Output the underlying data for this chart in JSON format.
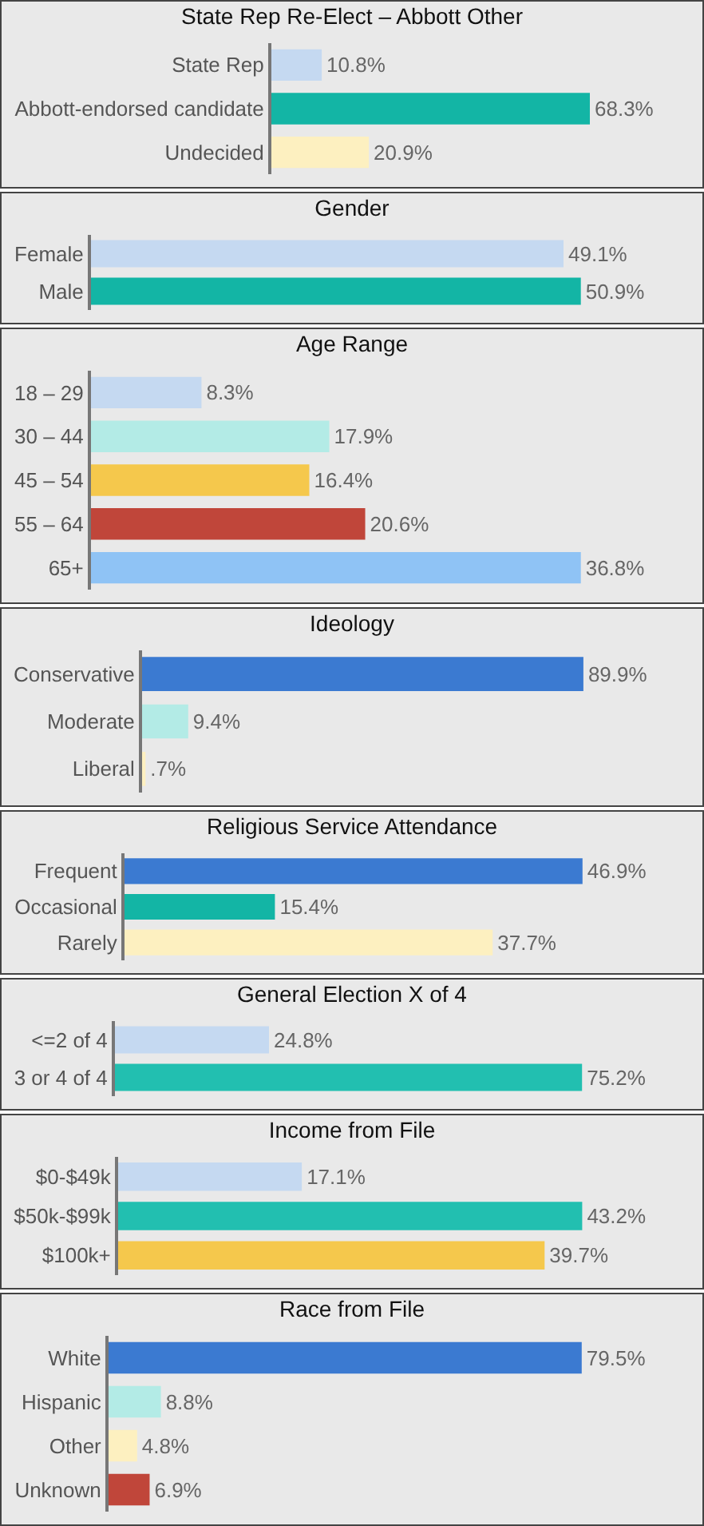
{
  "chart_data": [
    {
      "type": "bar",
      "orientation": "horizontal",
      "title": "State Rep Re-Elect – Abbott Other",
      "categories": [
        "State Rep",
        "Abbott-endorsed candidate",
        "Undecided"
      ],
      "values": [
        10.8,
        68.3,
        20.9
      ],
      "value_labels": [
        "10.8%",
        "68.3%",
        "20.9%"
      ],
      "colors": [
        "#c5d9f1",
        "#13b5a5",
        "#fdf0c0"
      ],
      "tick_labels": "y"
    },
    {
      "type": "bar",
      "orientation": "horizontal",
      "title": "Gender",
      "categories": [
        "Female",
        "Male"
      ],
      "values": [
        49.1,
        50.9
      ],
      "value_labels": [
        "49.1%",
        "50.9%"
      ],
      "colors": [
        "#c5d9f1",
        "#13b5a5"
      ],
      "tick_labels": "y"
    },
    {
      "type": "bar",
      "orientation": "horizontal",
      "title": "Age Range",
      "categories": [
        "18 – 29",
        "30 – 44",
        "45 – 54",
        "55 – 64",
        "65+"
      ],
      "values": [
        8.3,
        17.9,
        16.4,
        20.6,
        36.8
      ],
      "value_labels": [
        "8.3%",
        "17.9%",
        "16.4%",
        "20.6%",
        "36.8%"
      ],
      "colors": [
        "#c5d9f1",
        "#b3ebe6",
        "#f5c84c",
        "#c0463a",
        "#8fc3f5"
      ],
      "tick_labels": "y"
    },
    {
      "type": "bar",
      "orientation": "horizontal",
      "title": "Ideology",
      "categories": [
        "Conservative",
        "Moderate",
        "Liberal"
      ],
      "values": [
        89.9,
        9.4,
        0.7
      ],
      "value_labels": [
        "89.9%",
        "9.4%",
        ".7%"
      ],
      "colors": [
        "#3b7ad1",
        "#b3ebe6",
        "#fdf0c0"
      ],
      "tick_labels": "y"
    },
    {
      "type": "bar",
      "orientation": "horizontal",
      "title": "Religious Service Attendance",
      "categories": [
        "Frequent",
        "Occasional",
        "Rarely"
      ],
      "values": [
        46.9,
        15.4,
        37.7
      ],
      "value_labels": [
        "46.9%",
        "15.4%",
        "37.7%"
      ],
      "colors": [
        "#3b7ad1",
        "#13b5a5",
        "#fdf0c0"
      ],
      "tick_labels": "y"
    },
    {
      "type": "bar",
      "orientation": "horizontal",
      "title": "General Election X of 4",
      "categories": [
        "<=2 of 4",
        "3 or 4 of 4"
      ],
      "values": [
        24.8,
        75.2
      ],
      "value_labels": [
        "24.8%",
        "75.2%"
      ],
      "colors": [
        "#c5d9f1",
        "#22bfb0"
      ],
      "tick_labels": "y"
    },
    {
      "type": "bar",
      "orientation": "horizontal",
      "title": "Income from File",
      "categories": [
        "$0-$49k",
        "$50k-$99k",
        "$100k+"
      ],
      "values": [
        17.1,
        43.2,
        39.7
      ],
      "value_labels": [
        "17.1%",
        "43.2%",
        "39.7%"
      ],
      "colors": [
        "#c5d9f1",
        "#22bfb0",
        "#f5c84c"
      ],
      "tick_labels": "y"
    },
    {
      "type": "bar",
      "orientation": "horizontal",
      "title": "Race from File",
      "categories": [
        "White",
        "Hispanic",
        "Other",
        "Unknown"
      ],
      "values": [
        79.5,
        8.8,
        4.8,
        6.9
      ],
      "value_labels": [
        "79.5%",
        "8.8%",
        "4.8%",
        "6.9%"
      ],
      "colors": [
        "#3b7ad1",
        "#b3ebe6",
        "#fdf0c0",
        "#c0463a"
      ],
      "tick_labels": "y"
    }
  ]
}
